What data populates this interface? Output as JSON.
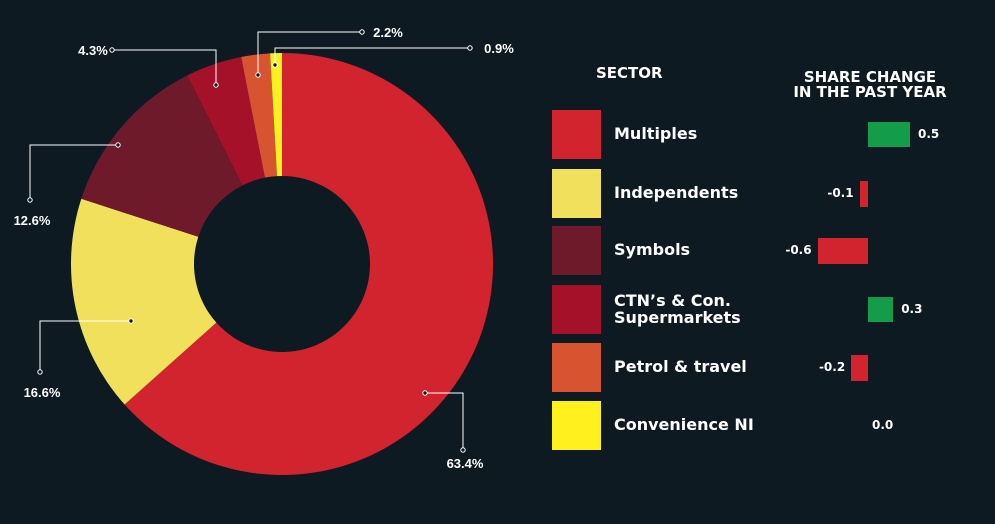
{
  "chart_data": {
    "type": "donut",
    "slices": [
      {
        "label": "Multiples",
        "value": 63.4,
        "value_label": "63.4%",
        "color": "#d1242e",
        "change": 0.5,
        "change_label": "0.5"
      },
      {
        "label": "Independents",
        "value": 16.6,
        "value_label": "16.6%",
        "color": "#f1e05b",
        "change": -0.1,
        "change_label": "-0.1"
      },
      {
        "label": "Symbols",
        "value": 12.6,
        "value_label": "12.6%",
        "color": "#6e1a2b",
        "change": -0.6,
        "change_label": "-0.6"
      },
      {
        "label": "CTN’s & Con. Supermarkets",
        "label_lines": [
          "CTN’s & Con.",
          "Supermarkets"
        ],
        "value": 4.3,
        "value_label": "4.3%",
        "color": "#a6112a",
        "change": 0.3,
        "change_label": "0.3"
      },
      {
        "label": "Petrol & travel",
        "value": 2.2,
        "value_label": "2.2%",
        "color": "#d85330",
        "change": -0.2,
        "change_label": "-0.2"
      },
      {
        "label": "Convenience NI",
        "value": 0.9,
        "value_label": "0.9%",
        "color": "#fff01e",
        "change": 0.0,
        "change_label": "0.0"
      }
    ],
    "legend_header": "SECTOR",
    "change_header": [
      "SHARE CHANGE",
      "IN THE PAST YEAR"
    ],
    "positive_color": "#139c4a",
    "negative_color": "#d1242e",
    "background": "#0e1a21"
  }
}
